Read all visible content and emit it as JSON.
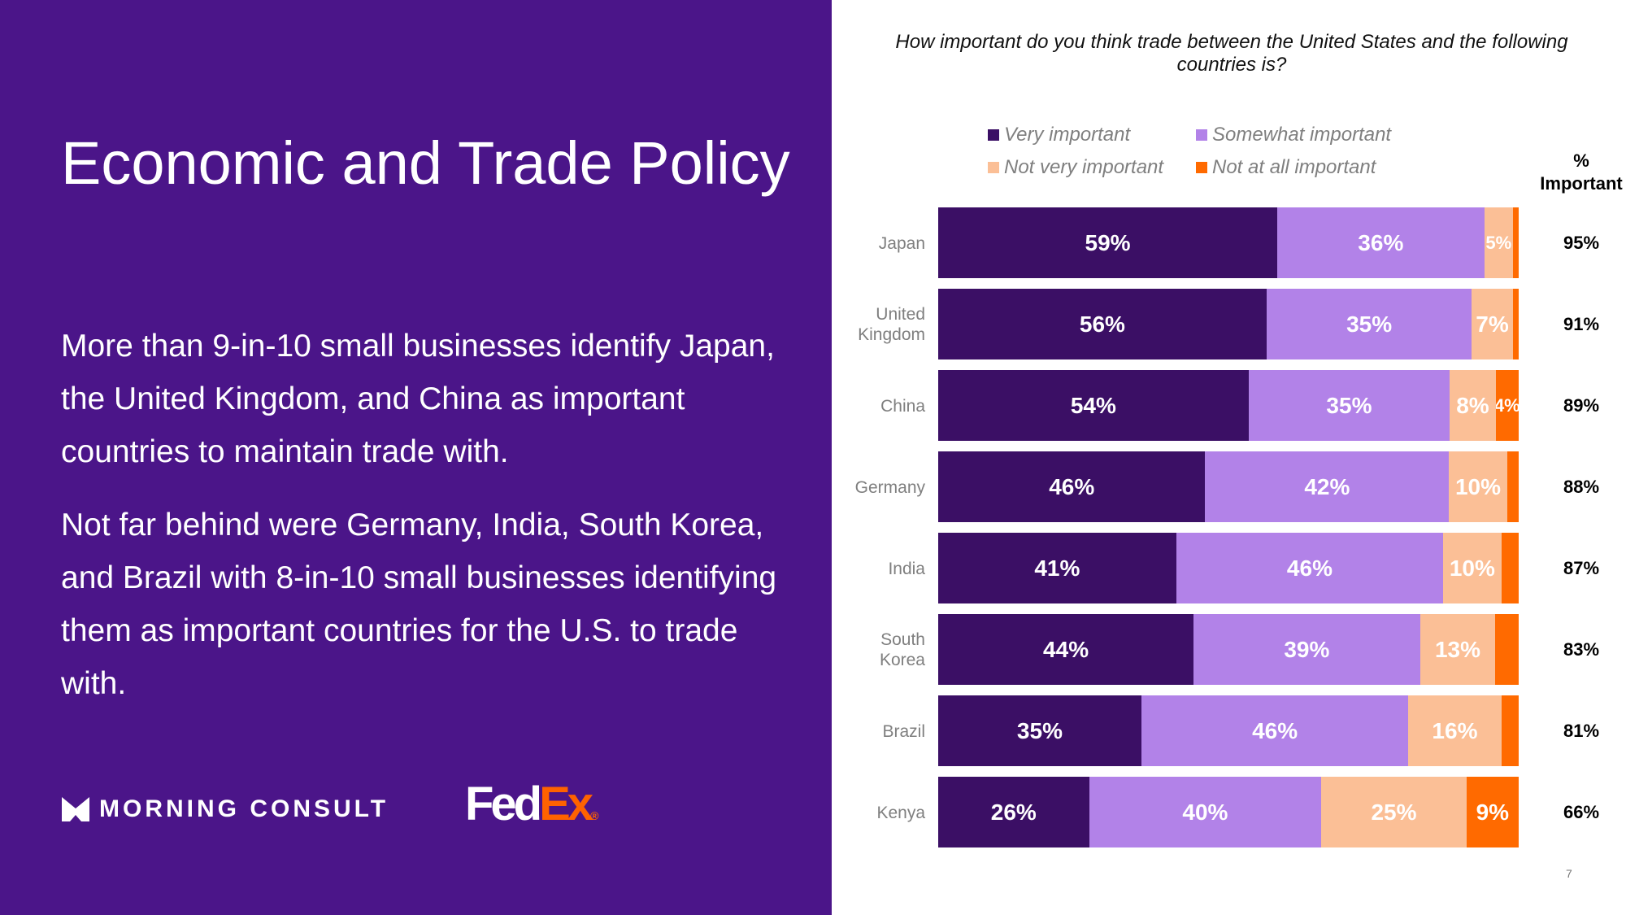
{
  "slide": {
    "title": "Economic and Trade Policy",
    "paragraph1": "More than 9-in-10 small businesses identify Japan, the United Kingdom, and China as important countries to maintain trade with.",
    "paragraph2": "Not far behind were Germany, India, South Korea, and Brazil with 8-in-10 small businesses identifying them as important countries for the U.S. to trade with.",
    "logo_morning_consult": "MORNING CONSULT",
    "logo_fedex_fed": "Fed",
    "logo_fedex_ex": "Ex",
    "page_number": "7",
    "background_color": "#4b1589"
  },
  "chart_data": {
    "type": "bar",
    "orientation": "horizontal-stacked-100",
    "title": "How important do you think trade between the United States and the following countries is?",
    "categories": [
      "Japan",
      "United Kingdom",
      "China",
      "Germany",
      "India",
      "South Korea",
      "Brazil",
      "Kenya"
    ],
    "series": [
      {
        "name": "Very important",
        "color": "#3b0f65",
        "values": [
          59,
          56,
          54,
          46,
          41,
          44,
          35,
          26
        ],
        "labels": [
          "59%",
          "56%",
          "54%",
          "46%",
          "41%",
          "44%",
          "35%",
          "26%"
        ]
      },
      {
        "name": "Somewhat important",
        "color": "#b282e8",
        "values": [
          36,
          35,
          35,
          42,
          46,
          39,
          46,
          40
        ],
        "labels": [
          "36%",
          "35%",
          "35%",
          "42%",
          "46%",
          "39%",
          "46%",
          "40%"
        ]
      },
      {
        "name": "Not very important",
        "color": "#fbbf96",
        "values": [
          5,
          7,
          8,
          10,
          10,
          13,
          16,
          25
        ],
        "labels": [
          "5%",
          "7%",
          "8%",
          "10%",
          "10%",
          "13%",
          "16%",
          "25%"
        ]
      },
      {
        "name": "Not at all important",
        "color": "#ff6a00",
        "values": [
          1,
          1,
          4,
          2,
          3,
          4,
          3,
          9
        ],
        "labels": [
          "",
          "",
          "4%",
          "",
          "",
          "",
          "",
          "9%"
        ]
      }
    ],
    "side_column": {
      "header_line1": "%",
      "header_line2": "Important",
      "values": [
        "95%",
        "91%",
        "89%",
        "88%",
        "87%",
        "83%",
        "81%",
        "66%"
      ]
    },
    "legend": "top",
    "xlim": [
      0,
      100
    ]
  }
}
